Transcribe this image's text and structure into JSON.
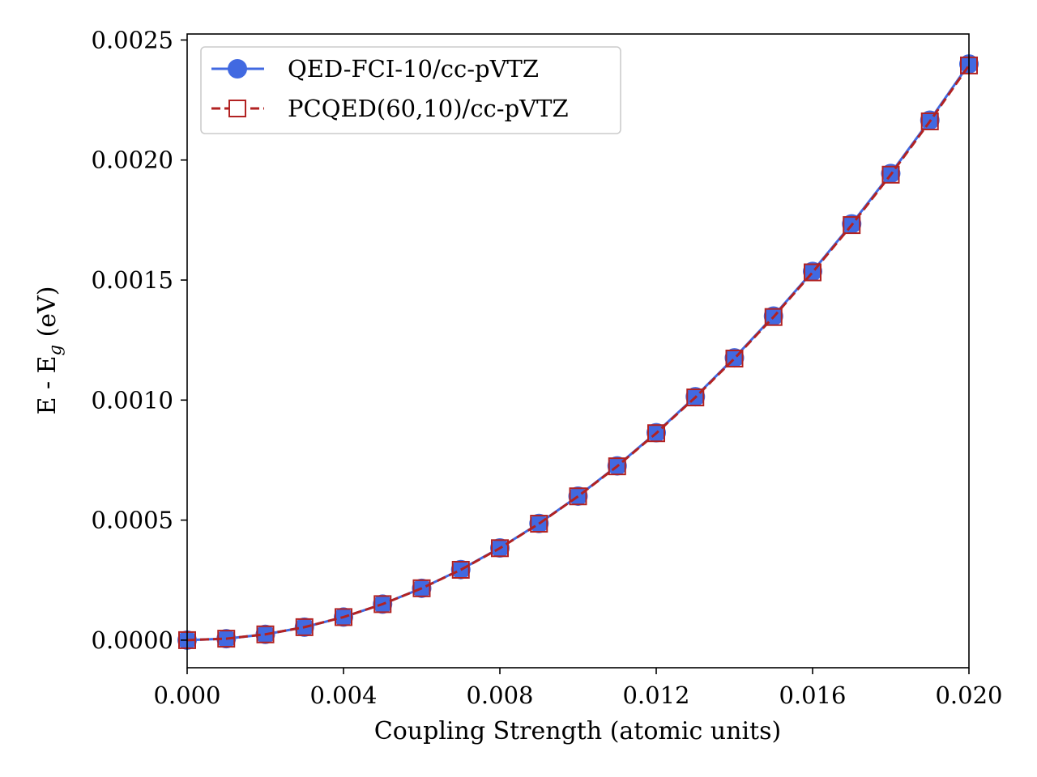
{
  "chart_data": {
    "type": "line",
    "xlabel": "Coupling Strength (atomic units)",
    "ylabel_main": "E - E",
    "ylabel_sub": "g",
    "ylabel_tail": " (eV)",
    "xlim": [
      0.0,
      0.02
    ],
    "ylim": [
      -0.000115,
      0.002525
    ],
    "xticks": [
      0.0,
      0.004,
      0.008,
      0.012,
      0.016,
      0.02
    ],
    "xtick_labels": [
      "0.000",
      "0.004",
      "0.008",
      "0.012",
      "0.016",
      "0.020"
    ],
    "yticks": [
      0.0,
      0.0005,
      0.001,
      0.0015,
      0.002,
      0.0025
    ],
    "ytick_labels": [
      "0.0000",
      "0.0005",
      "0.0010",
      "0.0015",
      "0.0020",
      "0.0025"
    ],
    "grid": false,
    "legend_position": "top-left",
    "x": [
      0.0,
      0.001,
      0.002,
      0.003,
      0.004,
      0.005,
      0.006,
      0.007,
      0.008,
      0.009,
      0.01,
      0.011,
      0.012,
      0.013,
      0.014,
      0.015,
      0.016,
      0.017,
      0.018,
      0.019,
      0.02
    ],
    "series": [
      {
        "name": "QED-FCI-10/cc-pVTZ",
        "color": "#4169e1",
        "linestyle": "solid",
        "marker": "circle",
        "values": [
          0.0,
          6e-06,
          2.4e-05,
          5.4e-05,
          9.6e-05,
          0.00015,
          0.000216,
          0.000294,
          0.000384,
          0.000486,
          0.0006,
          0.000726,
          0.000864,
          0.001014,
          0.001176,
          0.00135,
          0.001536,
          0.001734,
          0.001944,
          0.002166,
          0.0024
        ]
      },
      {
        "name": "PCQED(60,10)/cc-pVTZ",
        "color": "#b22222",
        "linestyle": "dashed",
        "marker": "square-open",
        "values": [
          0.0,
          6e-06,
          2.4e-05,
          5.4e-05,
          9.6e-05,
          0.00015,
          0.000216,
          0.000293,
          0.000383,
          0.000485,
          0.000599,
          0.000724,
          0.000862,
          0.001011,
          0.001173,
          0.001346,
          0.001532,
          0.001729,
          0.001939,
          0.002161,
          0.002394
        ]
      }
    ]
  }
}
